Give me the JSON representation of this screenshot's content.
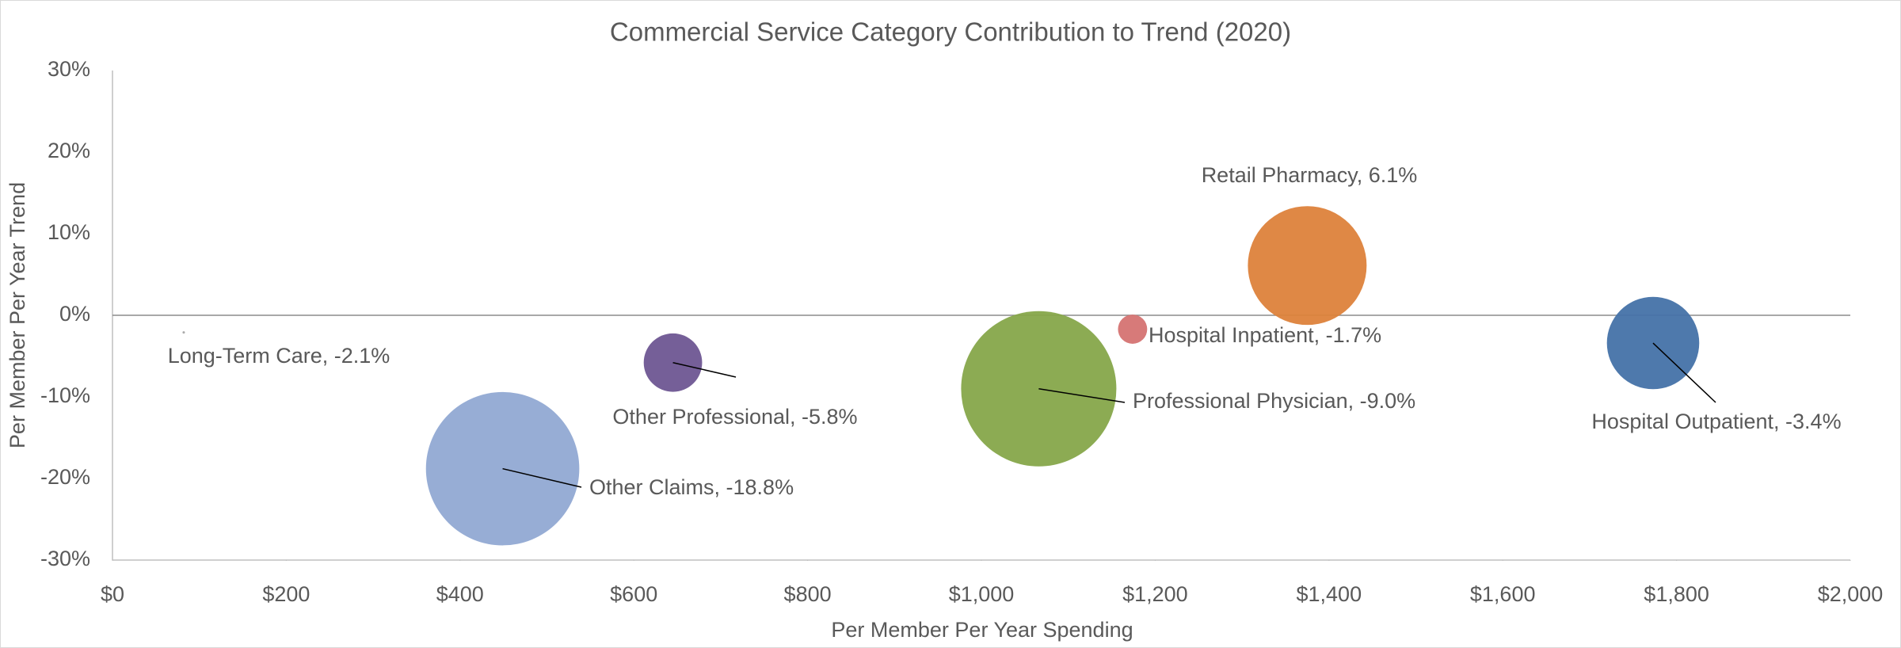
{
  "chart_data": {
    "type": "bubble",
    "title": "Commercial Service Category Contribution to Trend (2020)",
    "x_label": "Per Member Per Year Spending",
    "y_label": "Per Member Per Year Trend",
    "xlim": [
      0,
      2000
    ],
    "xticks": [
      {
        "value": 0,
        "label": "$0"
      },
      {
        "value": 200,
        "label": "$200"
      },
      {
        "value": 400,
        "label": "$400"
      },
      {
        "value": 600,
        "label": "$600"
      },
      {
        "value": 800,
        "label": "$800"
      },
      {
        "value": 1000,
        "label": "$1,000"
      },
      {
        "value": 1200,
        "label": "$1,200"
      },
      {
        "value": 1400,
        "label": "$1,400"
      },
      {
        "value": 1600,
        "label": "$1,600"
      },
      {
        "value": 1800,
        "label": "$1,800"
      },
      {
        "value": 2000,
        "label": "$2,000"
      }
    ],
    "ylim": [
      -30,
      30
    ],
    "yticks": [
      {
        "value": 30,
        "label": "30%"
      },
      {
        "value": 20,
        "label": "20%"
      },
      {
        "value": 10,
        "label": "10%"
      },
      {
        "value": 0,
        "label": "0%"
      },
      {
        "value": -10,
        "label": "-10%"
      },
      {
        "value": -20,
        "label": "-20%"
      },
      {
        "value": -30,
        "label": "-30%"
      }
    ],
    "series": [
      {
        "name": "Long-Term Care, -2.1%",
        "color": "#a5a5a5",
        "x": [
          82
        ],
        "values": [
          -2.1
        ],
        "sizes": [
          1
        ]
      },
      {
        "name": "Other Claims, -18.8%",
        "color": "#91a9d3",
        "x": [
          449
        ],
        "values": [
          -18.8
        ],
        "sizes": [
          4000
        ]
      },
      {
        "name": "Other Professional, -5.8%",
        "color": "#6e5692",
        "x": [
          645
        ],
        "values": [
          -5.8
        ],
        "sizes": [
          580
        ]
      },
      {
        "name": "Professional Physician, -9.0%",
        "color": "#86a64a",
        "x": [
          1066
        ],
        "values": [
          -9.0
        ],
        "sizes": [
          4100
        ]
      },
      {
        "name": "Hospital Inpatient, -1.7%",
        "color": "#d57372",
        "x": [
          1174
        ],
        "values": [
          -1.7
        ],
        "sizes": [
          145
        ]
      },
      {
        "name": "Retail Pharmacy, 6.1%",
        "color": "#dd823b",
        "x": [
          1375
        ],
        "values": [
          6.1
        ],
        "sizes": [
          2400
        ]
      },
      {
        "name": "Hospital Outpatient, -3.4%",
        "color": "#4472a8",
        "x": [
          1773
        ],
        "values": [
          -3.4
        ],
        "sizes": [
          1450
        ]
      }
    ]
  }
}
